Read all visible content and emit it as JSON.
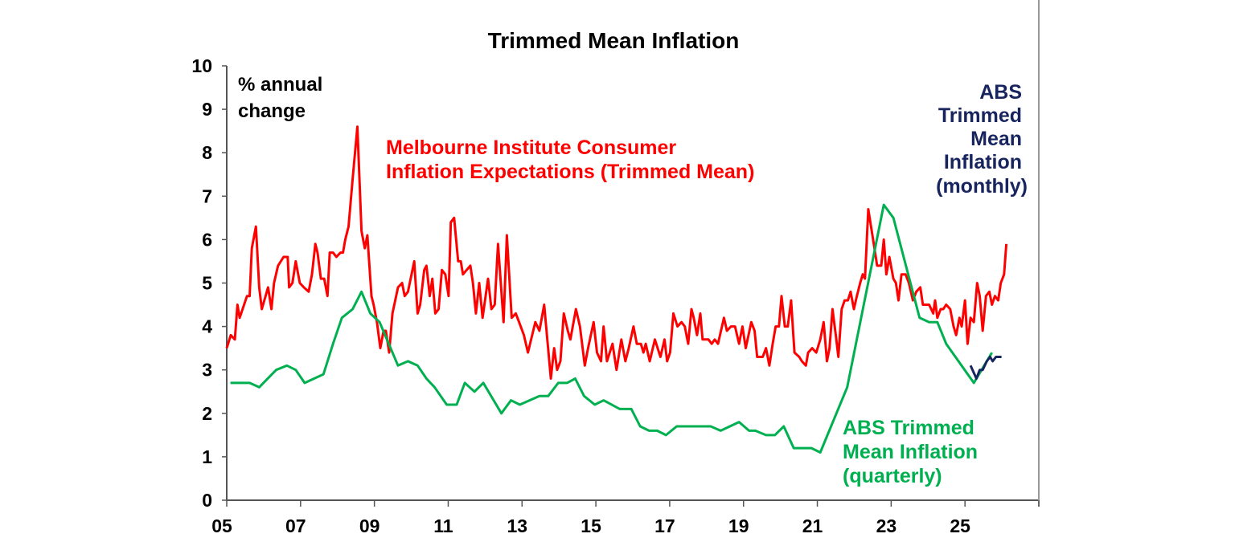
{
  "chart_data": {
    "type": "line",
    "title": "Trimmed Mean Inflation",
    "ylabel": "% annual change",
    "ylabel_lines": [
      "% annual",
      "change"
    ],
    "xlim": [
      2005,
      2027
    ],
    "ylim": [
      0,
      10
    ],
    "yticks": [
      0,
      1,
      2,
      3,
      4,
      5,
      6,
      7,
      8,
      9,
      10
    ],
    "xticks": [
      2005,
      2007,
      2009,
      2011,
      2013,
      2015,
      2017,
      2019,
      2021,
      2023,
      2025,
      2027
    ],
    "xtick_labels": [
      "05",
      "07",
      "09",
      "11",
      "13",
      "15",
      "17",
      "19",
      "21",
      "23",
      "25",
      ""
    ],
    "grid": false,
    "series": [
      {
        "name": "Melbourne Institute Consumer Inflation Expectations (Trimmed Mean)",
        "label_lines": [
          "Melbourne Institute Consumer",
          "Inflation Expectations (Trimmed Mean)"
        ],
        "color": "#ff0000",
        "points": [
          [
            2005.0,
            3.5
          ],
          [
            2005.11,
            3.8
          ],
          [
            2005.22,
            3.7
          ],
          [
            2005.29,
            4.5
          ],
          [
            2005.35,
            4.2
          ],
          [
            2005.55,
            4.7
          ],
          [
            2005.62,
            4.7
          ],
          [
            2005.68,
            5.8
          ],
          [
            2005.79,
            6.3
          ],
          [
            2005.88,
            4.9
          ],
          [
            2005.95,
            4.4
          ],
          [
            2006.12,
            4.9
          ],
          [
            2006.21,
            4.4
          ],
          [
            2006.28,
            5.0
          ],
          [
            2006.39,
            5.4
          ],
          [
            2006.54,
            5.6
          ],
          [
            2006.65,
            5.6
          ],
          [
            2006.69,
            4.9
          ],
          [
            2006.78,
            5.0
          ],
          [
            2006.87,
            5.5
          ],
          [
            2006.98,
            5.0
          ],
          [
            2007.09,
            4.9
          ],
          [
            2007.22,
            4.8
          ],
          [
            2007.31,
            5.2
          ],
          [
            2007.4,
            5.9
          ],
          [
            2007.46,
            5.7
          ],
          [
            2007.55,
            5.1
          ],
          [
            2007.64,
            5.1
          ],
          [
            2007.73,
            4.7
          ],
          [
            2007.79,
            5.7
          ],
          [
            2007.88,
            5.7
          ],
          [
            2007.97,
            5.6
          ],
          [
            2008.08,
            5.7
          ],
          [
            2008.15,
            5.7
          ],
          [
            2008.21,
            6.0
          ],
          [
            2008.3,
            6.3
          ],
          [
            2008.41,
            7.4
          ],
          [
            2008.54,
            8.6
          ],
          [
            2008.65,
            6.2
          ],
          [
            2008.74,
            5.8
          ],
          [
            2008.81,
            6.1
          ],
          [
            2008.92,
            4.7
          ],
          [
            2008.98,
            4.5
          ],
          [
            2009.07,
            4.1
          ],
          [
            2009.16,
            3.5
          ],
          [
            2009.25,
            3.9
          ],
          [
            2009.31,
            3.9
          ],
          [
            2009.4,
            3.4
          ],
          [
            2009.49,
            4.3
          ],
          [
            2009.64,
            4.9
          ],
          [
            2009.75,
            5.0
          ],
          [
            2009.82,
            4.7
          ],
          [
            2009.91,
            4.8
          ],
          [
            2010.08,
            5.5
          ],
          [
            2010.17,
            4.3
          ],
          [
            2010.24,
            4.5
          ],
          [
            2010.35,
            5.3
          ],
          [
            2010.41,
            5.4
          ],
          [
            2010.5,
            4.7
          ],
          [
            2010.57,
            5.1
          ],
          [
            2010.65,
            4.3
          ],
          [
            2010.74,
            4.4
          ],
          [
            2010.83,
            5.3
          ],
          [
            2010.92,
            5.2
          ],
          [
            2011.01,
            4.7
          ],
          [
            2011.07,
            6.4
          ],
          [
            2011.16,
            6.5
          ],
          [
            2011.27,
            5.5
          ],
          [
            2011.34,
            5.5
          ],
          [
            2011.4,
            5.2
          ],
          [
            2011.6,
            5.4
          ],
          [
            2011.67,
            5.0
          ],
          [
            2011.75,
            4.3
          ],
          [
            2011.84,
            5.0
          ],
          [
            2011.93,
            4.2
          ],
          [
            2012.08,
            5.1
          ],
          [
            2012.17,
            4.4
          ],
          [
            2012.26,
            4.5
          ],
          [
            2012.35,
            5.9
          ],
          [
            2012.5,
            4.1
          ],
          [
            2012.59,
            6.1
          ],
          [
            2012.72,
            4.2
          ],
          [
            2012.83,
            4.3
          ],
          [
            2012.92,
            4.1
          ],
          [
            2013.05,
            3.8
          ],
          [
            2013.16,
            3.4
          ],
          [
            2013.36,
            4.1
          ],
          [
            2013.47,
            3.9
          ],
          [
            2013.6,
            4.5
          ],
          [
            2013.78,
            2.8
          ],
          [
            2013.87,
            3.5
          ],
          [
            2013.95,
            3.0
          ],
          [
            2014.04,
            3.2
          ],
          [
            2014.13,
            4.3
          ],
          [
            2014.24,
            3.9
          ],
          [
            2014.31,
            3.7
          ],
          [
            2014.46,
            4.4
          ],
          [
            2014.57,
            4.0
          ],
          [
            2014.7,
            3.1
          ],
          [
            2014.79,
            3.5
          ],
          [
            2014.94,
            4.1
          ],
          [
            2015.03,
            3.4
          ],
          [
            2015.14,
            3.2
          ],
          [
            2015.21,
            4.0
          ],
          [
            2015.3,
            3.2
          ],
          [
            2015.45,
            3.6
          ],
          [
            2015.56,
            3.0
          ],
          [
            2015.69,
            3.7
          ],
          [
            2015.8,
            3.2
          ],
          [
            2015.89,
            3.5
          ],
          [
            2016.02,
            4.0
          ],
          [
            2016.11,
            3.6
          ],
          [
            2016.22,
            3.6
          ],
          [
            2016.29,
            3.4
          ],
          [
            2016.35,
            3.6
          ],
          [
            2016.46,
            3.2
          ],
          [
            2016.6,
            3.7
          ],
          [
            2016.75,
            3.3
          ],
          [
            2016.86,
            3.7
          ],
          [
            2016.93,
            3.2
          ],
          [
            2017.01,
            3.4
          ],
          [
            2017.1,
            4.3
          ],
          [
            2017.21,
            4.0
          ],
          [
            2017.32,
            4.1
          ],
          [
            2017.41,
            4.0
          ],
          [
            2017.5,
            3.6
          ],
          [
            2017.59,
            4.4
          ],
          [
            2017.65,
            4.2
          ],
          [
            2017.74,
            3.8
          ],
          [
            2017.83,
            4.3
          ],
          [
            2017.89,
            3.7
          ],
          [
            2018.05,
            3.7
          ],
          [
            2018.14,
            3.6
          ],
          [
            2018.22,
            3.7
          ],
          [
            2018.31,
            3.6
          ],
          [
            2018.47,
            4.2
          ],
          [
            2018.55,
            3.9
          ],
          [
            2018.66,
            4.0
          ],
          [
            2018.77,
            4.0
          ],
          [
            2018.88,
            3.6
          ],
          [
            2018.97,
            4.0
          ],
          [
            2019.06,
            3.5
          ],
          [
            2019.21,
            4.1
          ],
          [
            2019.3,
            3.9
          ],
          [
            2019.37,
            3.3
          ],
          [
            2019.52,
            3.3
          ],
          [
            2019.61,
            3.5
          ],
          [
            2019.7,
            3.1
          ],
          [
            2019.79,
            3.6
          ],
          [
            2019.87,
            4.0
          ],
          [
            2019.96,
            4.0
          ],
          [
            2020.03,
            4.7
          ],
          [
            2020.12,
            4.0
          ],
          [
            2020.2,
            4.0
          ],
          [
            2020.29,
            4.6
          ],
          [
            2020.38,
            3.4
          ],
          [
            2020.51,
            3.3
          ],
          [
            2020.58,
            3.2
          ],
          [
            2020.69,
            3.1
          ],
          [
            2020.75,
            3.4
          ],
          [
            2020.86,
            3.5
          ],
          [
            2020.97,
            3.4
          ],
          [
            2021.08,
            3.7
          ],
          [
            2021.17,
            4.1
          ],
          [
            2021.26,
            3.2
          ],
          [
            2021.33,
            3.5
          ],
          [
            2021.41,
            4.4
          ],
          [
            2021.5,
            3.8
          ],
          [
            2021.57,
            3.3
          ],
          [
            2021.66,
            4.4
          ],
          [
            2021.74,
            4.6
          ],
          [
            2021.83,
            4.6
          ],
          [
            2021.9,
            4.8
          ],
          [
            2021.99,
            4.4
          ],
          [
            2022.07,
            4.7
          ],
          [
            2022.16,
            5.0
          ],
          [
            2022.23,
            5.2
          ],
          [
            2022.29,
            5.1
          ],
          [
            2022.38,
            6.7
          ],
          [
            2022.51,
            6.0
          ],
          [
            2022.62,
            5.4
          ],
          [
            2022.73,
            5.4
          ],
          [
            2022.8,
            6.0
          ],
          [
            2022.87,
            5.2
          ],
          [
            2022.95,
            5.6
          ],
          [
            2023.06,
            5.1
          ],
          [
            2023.13,
            5.0
          ],
          [
            2023.2,
            4.6
          ],
          [
            2023.28,
            5.2
          ],
          [
            2023.39,
            5.2
          ],
          [
            2023.48,
            5.0
          ],
          [
            2023.59,
            4.6
          ],
          [
            2023.68,
            4.8
          ],
          [
            2023.79,
            4.9
          ],
          [
            2023.86,
            4.5
          ],
          [
            2024.03,
            4.5
          ],
          [
            2024.14,
            4.3
          ],
          [
            2024.19,
            4.6
          ],
          [
            2024.25,
            4.2
          ],
          [
            2024.34,
            4.4
          ],
          [
            2024.41,
            4.4
          ],
          [
            2024.49,
            4.5
          ],
          [
            2024.6,
            4.4
          ],
          [
            2024.69,
            4.0
          ],
          [
            2024.76,
            3.8
          ],
          [
            2024.85,
            4.2
          ],
          [
            2024.91,
            4.0
          ],
          [
            2025.0,
            4.6
          ],
          [
            2025.07,
            3.6
          ],
          [
            2025.15,
            4.2
          ],
          [
            2025.24,
            4.1
          ],
          [
            2025.33,
            5.0
          ],
          [
            2025.4,
            4.7
          ],
          [
            2025.48,
            3.9
          ],
          [
            2025.57,
            4.7
          ],
          [
            2025.66,
            4.8
          ],
          [
            2025.73,
            4.5
          ],
          [
            2025.81,
            4.7
          ],
          [
            2025.9,
            4.6
          ],
          [
            2025.97,
            5.0
          ],
          [
            2026.06,
            5.2
          ],
          [
            2026.12,
            5.9
          ]
        ]
      },
      {
        "name": "ABS Trimmed Mean Inflation (quarterly)",
        "label_lines": [
          "ABS Trimmed",
          "Mean Inflation",
          "(quarterly)"
        ],
        "color": "#00b050",
        "points": [
          [
            2005.1,
            2.7
          ],
          [
            2005.62,
            2.7
          ],
          [
            2005.88,
            2.6
          ],
          [
            2006.34,
            3.0
          ],
          [
            2006.63,
            3.1
          ],
          [
            2006.87,
            3.0
          ],
          [
            2007.11,
            2.7
          ],
          [
            2007.62,
            2.9
          ],
          [
            2007.88,
            3.6
          ],
          [
            2008.12,
            4.2
          ],
          [
            2008.41,
            4.4
          ],
          [
            2008.65,
            4.8
          ],
          [
            2008.89,
            4.3
          ],
          [
            2009.14,
            4.1
          ],
          [
            2009.64,
            3.1
          ],
          [
            2009.91,
            3.2
          ],
          [
            2010.17,
            3.1
          ],
          [
            2010.41,
            2.8
          ],
          [
            2010.63,
            2.6
          ],
          [
            2010.96,
            2.2
          ],
          [
            2011.23,
            2.2
          ],
          [
            2011.45,
            2.7
          ],
          [
            2011.71,
            2.5
          ],
          [
            2011.95,
            2.7
          ],
          [
            2012.44,
            2.0
          ],
          [
            2012.7,
            2.3
          ],
          [
            2012.94,
            2.2
          ],
          [
            2013.47,
            2.4
          ],
          [
            2013.71,
            2.4
          ],
          [
            2013.98,
            2.7
          ],
          [
            2014.22,
            2.7
          ],
          [
            2014.44,
            2.8
          ],
          [
            2014.68,
            2.4
          ],
          [
            2014.97,
            2.2
          ],
          [
            2015.21,
            2.3
          ],
          [
            2015.65,
            2.1
          ],
          [
            2015.96,
            2.1
          ],
          [
            2016.2,
            1.7
          ],
          [
            2016.44,
            1.6
          ],
          [
            2016.66,
            1.6
          ],
          [
            2016.9,
            1.5
          ],
          [
            2017.19,
            1.7
          ],
          [
            2018.11,
            1.7
          ],
          [
            2018.38,
            1.6
          ],
          [
            2018.88,
            1.8
          ],
          [
            2019.15,
            1.6
          ],
          [
            2019.32,
            1.6
          ],
          [
            2019.61,
            1.5
          ],
          [
            2019.85,
            1.5
          ],
          [
            2020.09,
            1.7
          ],
          [
            2020.36,
            1.2
          ],
          [
            2020.84,
            1.2
          ],
          [
            2021.08,
            1.1
          ],
          [
            2021.81,
            2.6
          ],
          [
            2022.8,
            6.8
          ],
          [
            2023.06,
            6.5
          ],
          [
            2023.77,
            4.2
          ],
          [
            2024.03,
            4.1
          ],
          [
            2024.25,
            4.1
          ],
          [
            2024.49,
            3.6
          ],
          [
            2025.24,
            2.7
          ],
          [
            2025.73,
            3.4
          ]
        ]
      },
      {
        "name": "ABS Trimmed Mean Inflation (monthly)",
        "label_lines": [
          "ABS",
          "Trimmed",
          "Mean",
          "Inflation",
          "(monthly)"
        ],
        "color": "#17245e",
        "points": [
          [
            2025.15,
            3.1
          ],
          [
            2025.31,
            2.8
          ],
          [
            2025.4,
            3.0
          ],
          [
            2025.48,
            3.0
          ],
          [
            2025.59,
            3.2
          ],
          [
            2025.68,
            3.3
          ],
          [
            2025.75,
            3.2
          ],
          [
            2025.84,
            3.3
          ],
          [
            2025.99,
            3.3
          ]
        ]
      }
    ]
  }
}
